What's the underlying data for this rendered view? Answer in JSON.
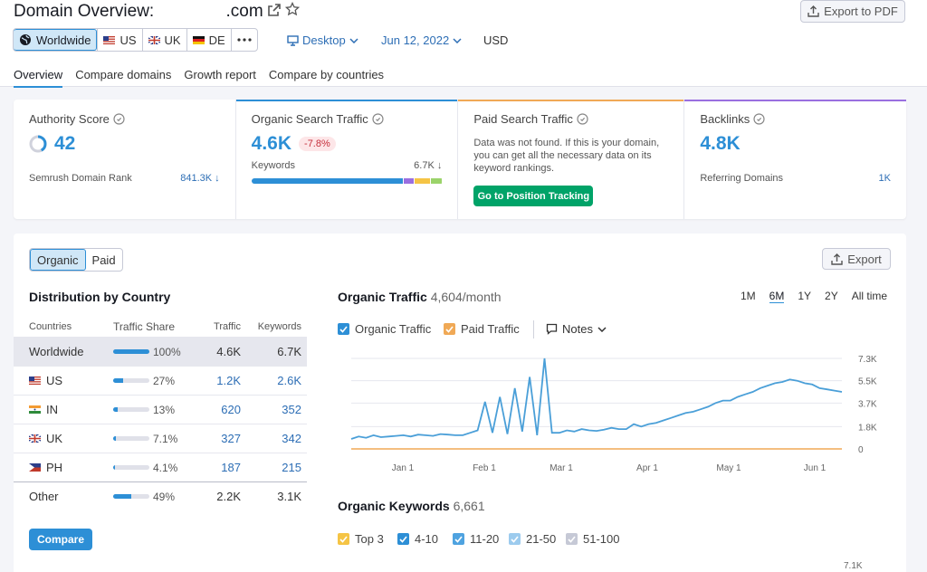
{
  "header": {
    "title": "Domain Overview:",
    "domain": ".com",
    "export_pdf": "Export to PDF",
    "db_buttons": [
      "Worldwide",
      "US",
      "UK",
      "DE"
    ],
    "device": "Desktop",
    "date": "Jun 12, 2022",
    "currency": "USD"
  },
  "tabs": [
    "Overview",
    "Compare domains",
    "Growth report",
    "Compare by countries"
  ],
  "cards": {
    "authority": {
      "title": "Authority Score",
      "value": "42",
      "sub_label": "Semrush Domain Rank",
      "sub_value": "841.3K ↓",
      "score_fraction": 0.42
    },
    "organic": {
      "title": "Organic Search Traffic",
      "value": "4.6K",
      "change": "-7.8%",
      "sub_label": "Keywords",
      "sub_value": "6.7K ↓",
      "segments": [
        0.79,
        0.05,
        0.08,
        0.06
      ]
    },
    "paid": {
      "title": "Paid Search Traffic",
      "note": "Data was not found. If this is your domain, you can get all the necessary data on its keyword rankings.",
      "button": "Go to Position Tracking"
    },
    "backlinks": {
      "title": "Backlinks",
      "value": "4.8K",
      "sub_label": "Referring Domains",
      "sub_value": "1K"
    }
  },
  "colors": {
    "accent": "#2d8fd6",
    "green": "#00a368",
    "orange": "#f0a956",
    "purple": "#9a6fe0",
    "yellow": "#f5c445",
    "lime": "#9bd36a"
  },
  "panel": {
    "seg": [
      "Organic",
      "Paid"
    ],
    "export": "Export",
    "dist_title": "Distribution by Country",
    "columns": [
      "Countries",
      "Traffic Share",
      "Traffic",
      "Keywords"
    ],
    "rows": [
      {
        "country": "Worldwide",
        "share": "100%",
        "share_fraction": 1.0,
        "traffic": "4.6K",
        "keywords": "6.7K"
      },
      {
        "country": "US",
        "share": "27%",
        "share_fraction": 0.27,
        "traffic": "1.2K",
        "keywords": "2.6K"
      },
      {
        "country": "IN",
        "share": "13%",
        "share_fraction": 0.13,
        "traffic": "620",
        "keywords": "352"
      },
      {
        "country": "UK",
        "share": "7.1%",
        "share_fraction": 0.071,
        "traffic": "327",
        "keywords": "342"
      },
      {
        "country": "PH",
        "share": "4.1%",
        "share_fraction": 0.041,
        "traffic": "187",
        "keywords": "215"
      },
      {
        "country": "Other",
        "share": "49%",
        "share_fraction": 0.49,
        "traffic": "2.2K",
        "keywords": "3.1K"
      }
    ],
    "compare": "Compare",
    "traffic_title": "Organic Traffic",
    "traffic_sub": "4,604/month",
    "periods": [
      "1M",
      "6M",
      "1Y",
      "2Y",
      "All time"
    ],
    "legend": [
      "Organic Traffic",
      "Paid Traffic"
    ],
    "notes": "Notes",
    "kw_title": "Organic Keywords",
    "kw_value": "6,661",
    "kw_legend": [
      "Top 3",
      "4-10",
      "11-20",
      "21-50",
      "51-100"
    ],
    "kw_axis_top": "7.1K"
  },
  "chart_data": {
    "type": "line",
    "title": "Organic Traffic",
    "x_ticks": [
      "Jan 1",
      "Feb 1",
      "Mar 1",
      "Apr 1",
      "May 1",
      "Jun 1"
    ],
    "y_ticks": [
      "0",
      "1.8K",
      "3.7K",
      "5.5K",
      "7.3K"
    ],
    "ylim": [
      0,
      7300
    ],
    "series": [
      {
        "name": "Organic Traffic",
        "values": [
          800,
          1000,
          900,
          1100,
          950,
          1000,
          1050,
          1100,
          1000,
          1150,
          1100,
          1050,
          1200,
          1150,
          1100,
          1100,
          1300,
          1500,
          3800,
          1300,
          4200,
          1200,
          4900,
          1400,
          5800,
          1100,
          7300,
          1300,
          1300,
          1500,
          1400,
          1600,
          1500,
          1450,
          1550,
          1700,
          1600,
          1600,
          2000,
          1800,
          2000,
          2100,
          2300,
          2500,
          2700,
          2900,
          3000,
          3200,
          3400,
          3700,
          3900,
          3900,
          4200,
          4400,
          4600,
          4900,
          5100,
          5300,
          5400,
          5600,
          5500,
          5300,
          5200,
          4900,
          4800,
          4700,
          4600
        ]
      },
      {
        "name": "Paid Traffic",
        "values": [
          0,
          0,
          0,
          0,
          0,
          0,
          0,
          0,
          0,
          0,
          0,
          0,
          0,
          0,
          0,
          0,
          0,
          0,
          0,
          0,
          0,
          0,
          0,
          0,
          0,
          0,
          0,
          0,
          0,
          0,
          0,
          0,
          0,
          0,
          0,
          0,
          0,
          0,
          0,
          0,
          0,
          0,
          0,
          0,
          0,
          0,
          0,
          0,
          0,
          0,
          0,
          0,
          0,
          0,
          0,
          0,
          0,
          0,
          0,
          0,
          0,
          0,
          0,
          0,
          0,
          0,
          0
        ]
      }
    ]
  }
}
